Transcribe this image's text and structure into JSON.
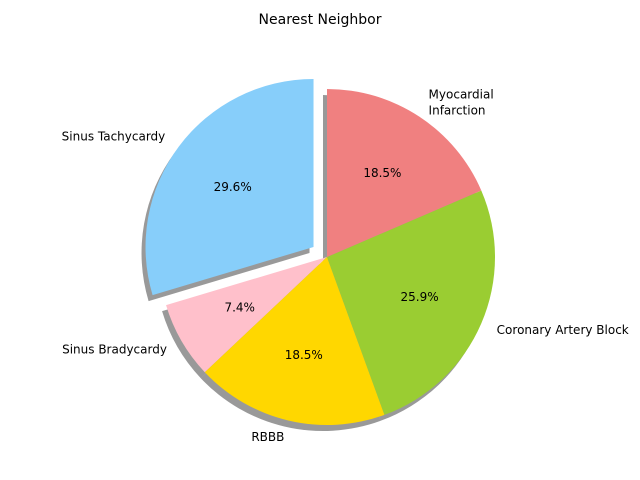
{
  "chart_data": {
    "type": "pie",
    "title": "Nearest Neighbor",
    "start_angle_deg": 90,
    "direction": "counterclockwise",
    "shadow": true,
    "slices": [
      {
        "label": "Sinus Tachycardy",
        "value": 29.6,
        "pct_label": "29.6%",
        "color": "#87CEFA",
        "explode": 0.1
      },
      {
        "label": "Sinus Bradycardy",
        "value": 7.4,
        "pct_label": "7.4%",
        "color": "#FFC0CB",
        "explode": 0
      },
      {
        "label": "RBBB",
        "value": 18.5,
        "pct_label": "18.5%",
        "color": "#FFD700",
        "explode": 0
      },
      {
        "label": "Coronary Artery Block",
        "value": 25.9,
        "pct_label": "25.9%",
        "color": "#9ACD32",
        "explode": 0
      },
      {
        "label": "Myocardial\nInfarction",
        "value": 18.5,
        "pct_label": "18.5%",
        "color": "#F08080",
        "explode": 0
      }
    ]
  }
}
